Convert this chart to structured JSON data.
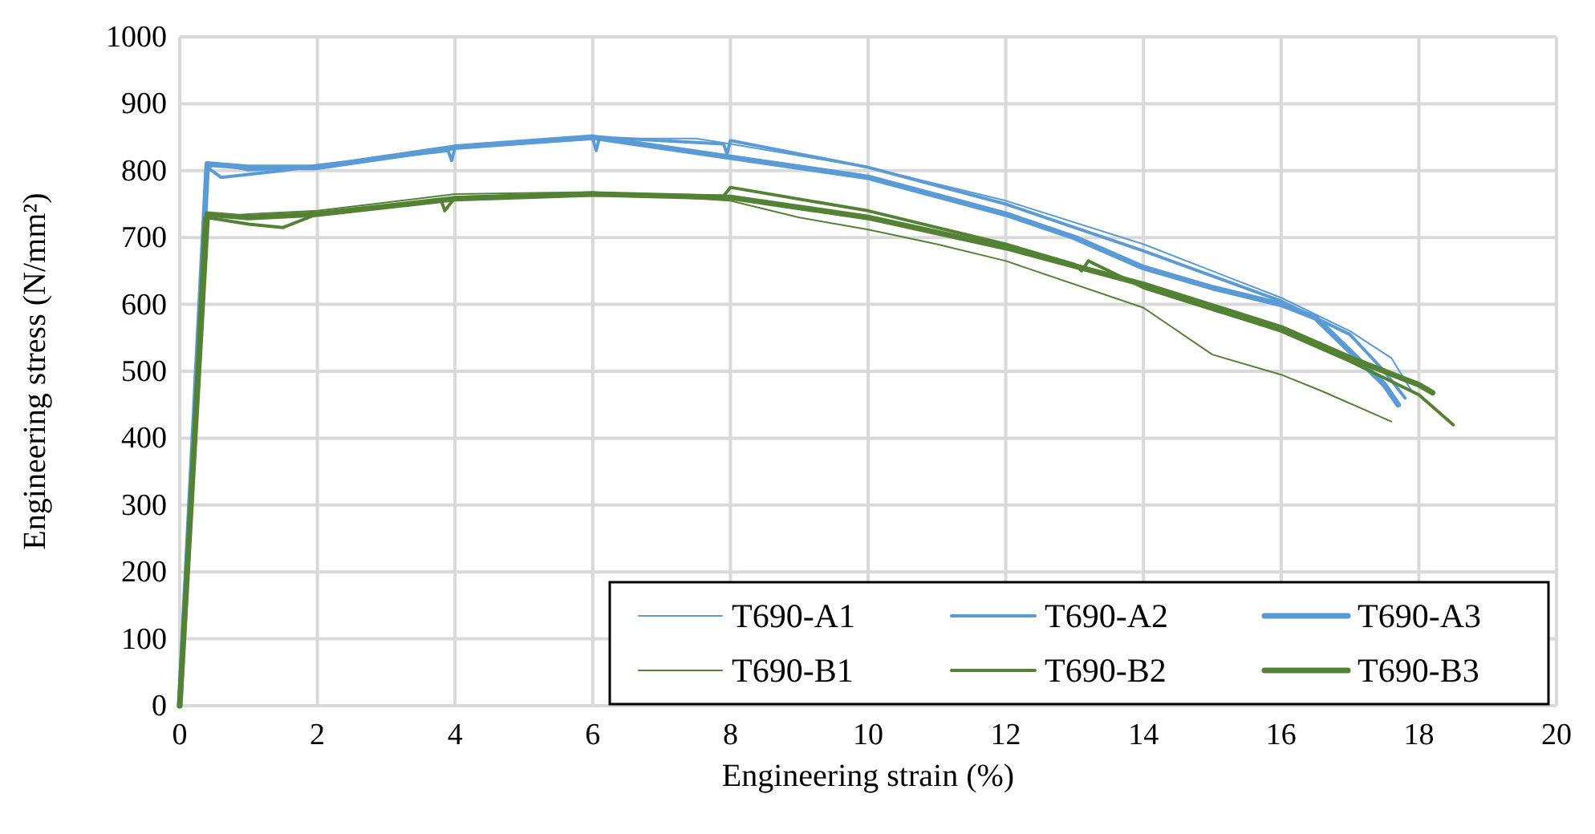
{
  "chart_data": {
    "type": "line",
    "xlabel": "Engineering strain (%)",
    "ylabel": "Engineering stress (N/mm²)",
    "xlim": [
      0,
      20
    ],
    "xticks": [
      0,
      2,
      4,
      6,
      8,
      10,
      12,
      14,
      16,
      18,
      20
    ],
    "ylim": [
      0,
      1000
    ],
    "yticks": [
      0,
      100,
      200,
      300,
      400,
      500,
      600,
      700,
      800,
      900,
      1000
    ],
    "grid": true,
    "legend": "bottom right",
    "line_style": "solid",
    "series": [
      {
        "name": "T690-A1",
        "color": "#5b9bd5",
        "x": [
          0,
          0.4,
          0.5,
          1,
          2,
          4,
          6,
          7.5,
          8,
          10,
          12,
          14,
          16,
          17,
          17.6,
          17.9
        ],
        "values": [
          0,
          800,
          810,
          800,
          805,
          835,
          848,
          848,
          840,
          805,
          755,
          690,
          610,
          560,
          520,
          470
        ]
      },
      {
        "name": "T690-A2",
        "color": "#5b9bd5",
        "x": [
          0,
          0.4,
          0.6,
          1.5,
          2,
          3.9,
          3.95,
          4,
          6,
          6.05,
          6.1,
          7.9,
          7.95,
          8,
          10,
          12,
          14,
          16,
          17,
          17.5,
          17.8
        ],
        "values": [
          0,
          805,
          790,
          800,
          808,
          830,
          815,
          835,
          848,
          830,
          850,
          840,
          825,
          845,
          805,
          750,
          680,
          605,
          555,
          500,
          460
        ]
      },
      {
        "name": "T690-A3",
        "color": "#5b9bd5",
        "x": [
          0,
          0.4,
          1,
          2,
          4,
          6,
          8,
          10,
          12,
          13,
          14,
          15,
          16,
          16.5,
          17,
          17.5,
          17.7
        ],
        "values": [
          0,
          810,
          805,
          805,
          835,
          850,
          820,
          790,
          735,
          700,
          655,
          625,
          600,
          580,
          530,
          480,
          450
        ]
      },
      {
        "name": "T690-B1",
        "color": "#548235",
        "x": [
          0,
          0.35,
          1,
          2,
          4,
          6,
          8,
          9,
          10,
          11,
          12,
          14,
          15,
          16,
          16.6,
          17.6
        ],
        "values": [
          0,
          730,
          735,
          740,
          765,
          768,
          755,
          730,
          712,
          690,
          665,
          595,
          525,
          495,
          470,
          425
        ]
      },
      {
        "name": "T690-B2",
        "color": "#548235",
        "x": [
          0,
          0.4,
          1,
          1.5,
          2,
          3.8,
          3.85,
          4,
          6,
          7.9,
          8,
          10,
          12,
          13,
          13.1,
          13.2,
          14,
          16,
          17,
          18,
          18.5
        ],
        "values": [
          0,
          730,
          720,
          715,
          735,
          755,
          740,
          760,
          765,
          762,
          775,
          740,
          690,
          660,
          650,
          665,
          625,
          560,
          515,
          465,
          420
        ]
      },
      {
        "name": "T690-B3",
        "color": "#548235",
        "x": [
          0,
          0.4,
          1,
          2,
          4,
          6,
          8,
          10,
          12,
          14,
          16,
          17,
          18,
          18.2
        ],
        "values": [
          0,
          735,
          730,
          735,
          758,
          765,
          760,
          730,
          685,
          630,
          565,
          520,
          480,
          468
        ]
      }
    ]
  }
}
